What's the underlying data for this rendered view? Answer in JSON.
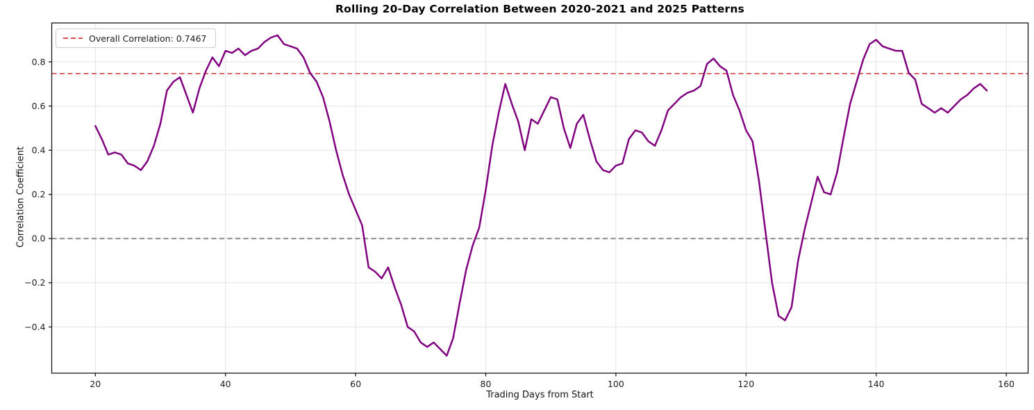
{
  "chart": {
    "title": "Rolling 20-Day Correlation Between 2020-2021 and 2025 Patterns",
    "x_axis_label": "Trading Days from Start",
    "y_axis_label": "Correlation Coefficient",
    "legend": {
      "overall_label": "Overall Correlation: 0.7467"
    }
  },
  "chart_data": {
    "type": "line",
    "title": "Rolling 20-Day Correlation Between 2020-2021 and 2025 Patterns",
    "xlabel": "Trading Days from Start",
    "ylabel": "Correlation Coefficient",
    "legend_position": "upper left",
    "grid": true,
    "overall_correlation": 0.7467,
    "zero_reference": 0.0,
    "xlim": [
      13.3,
      163.35
    ],
    "ylim": [
      -0.609,
      0.976
    ],
    "x_ticks": [
      20,
      40,
      60,
      80,
      100,
      120,
      140,
      160
    ],
    "y_ticks": [
      {
        "v": 0.8,
        "label": "0.8"
      },
      {
        "v": 0.6,
        "label": "0.6"
      },
      {
        "v": 0.4,
        "label": "0.4"
      },
      {
        "v": 0.2,
        "label": "0.2"
      },
      {
        "v": 0.0,
        "label": "0.0"
      },
      {
        "v": -0.2,
        "label": "−0.2"
      },
      {
        "v": -0.4,
        "label": "−0.4"
      }
    ],
    "series_name": "rolling-20d-correlation",
    "days": [
      20,
      21,
      22,
      23,
      24,
      25,
      26,
      27,
      28,
      29,
      30,
      31,
      32,
      33,
      34,
      35,
      36,
      37,
      38,
      39,
      40,
      41,
      42,
      43,
      44,
      45,
      46,
      47,
      48,
      49,
      50,
      51,
      52,
      53,
      54,
      55,
      56,
      57,
      58,
      59,
      60,
      61,
      62,
      63,
      64,
      65,
      66,
      67,
      68,
      69,
      70,
      71,
      72,
      73,
      74,
      75,
      76,
      77,
      78,
      79,
      80,
      81,
      82,
      83,
      84,
      85,
      86,
      87,
      88,
      89,
      90,
      91,
      92,
      93,
      94,
      95,
      96,
      97,
      98,
      99,
      100,
      101,
      102,
      103,
      104,
      105,
      106,
      107,
      108,
      109,
      110,
      111,
      112,
      113,
      114,
      115,
      116,
      117,
      118,
      119,
      120,
      121,
      122,
      123,
      124,
      125,
      126,
      127,
      128,
      129,
      130,
      131,
      132,
      133,
      134,
      135,
      136,
      137,
      138,
      139,
      140,
      141,
      142,
      143,
      144,
      145,
      146,
      147,
      148,
      149,
      150,
      151,
      152,
      153,
      154,
      155,
      156,
      157
    ],
    "values": [
      0.51,
      0.45,
      0.38,
      0.39,
      0.38,
      0.34,
      0.33,
      0.31,
      0.35,
      0.42,
      0.52,
      0.67,
      0.71,
      0.73,
      0.65,
      0.57,
      0.68,
      0.76,
      0.82,
      0.78,
      0.85,
      0.84,
      0.86,
      0.83,
      0.85,
      0.86,
      0.89,
      0.91,
      0.92,
      0.88,
      0.87,
      0.86,
      0.82,
      0.75,
      0.71,
      0.64,
      0.53,
      0.4,
      0.29,
      0.2,
      0.13,
      0.06,
      -0.13,
      -0.15,
      -0.18,
      -0.13,
      -0.22,
      -0.3,
      -0.4,
      -0.42,
      -0.47,
      -0.49,
      -0.47,
      -0.5,
      -0.53,
      -0.45,
      -0.29,
      -0.14,
      -0.03,
      0.05,
      0.22,
      0.42,
      0.57,
      0.7,
      0.61,
      0.53,
      0.4,
      0.54,
      0.52,
      0.58,
      0.64,
      0.63,
      0.5,
      0.41,
      0.52,
      0.56,
      0.45,
      0.35,
      0.31,
      0.3,
      0.33,
      0.34,
      0.45,
      0.49,
      0.48,
      0.44,
      0.42,
      0.49,
      0.58,
      0.61,
      0.64,
      0.66,
      0.67,
      0.69,
      0.79,
      0.815,
      0.78,
      0.76,
      0.65,
      0.58,
      0.49,
      0.44,
      0.26,
      0.03,
      -0.2,
      -0.35,
      -0.37,
      -0.31,
      -0.1,
      0.04,
      0.16,
      0.28,
      0.21,
      0.2,
      0.3,
      0.46,
      0.61,
      0.71,
      0.81,
      0.88,
      0.9,
      0.87,
      0.86,
      0.85,
      0.85,
      0.75,
      0.72,
      0.61,
      0.59,
      0.57,
      0.59,
      0.57,
      0.6,
      0.63,
      0.65,
      0.68,
      0.7,
      0.67
    ],
    "colors": {
      "series": "#800080",
      "overall_line": "#d84f4f",
      "zero_line": "#808080",
      "grid": "#e3e3e3",
      "spine": "#141414",
      "tick_text": "#1c1c1c"
    }
  }
}
